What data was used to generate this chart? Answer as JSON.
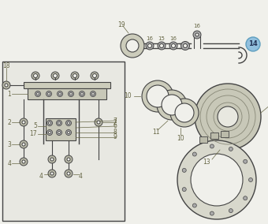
{
  "bg_color": "#f0f0eb",
  "box_color": "#e8e8e2",
  "lc": "#444444",
  "cc": "#666644",
  "hc": "#88bbdd",
  "fig_w": 3.4,
  "fig_h": 2.84,
  "dpi": 100
}
